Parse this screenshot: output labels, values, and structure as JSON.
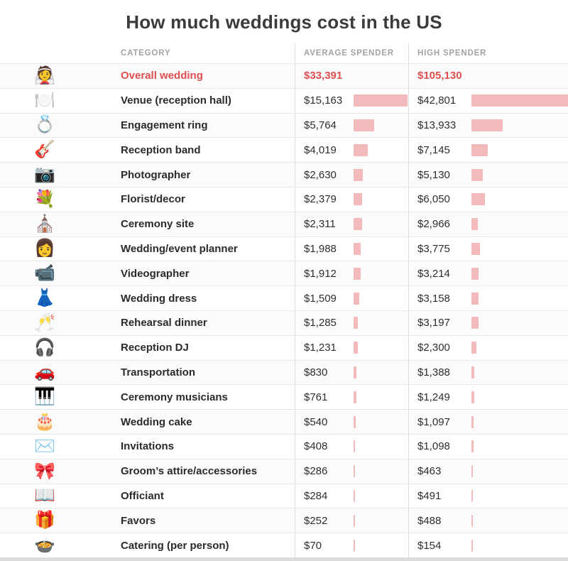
{
  "title": "How much weddings cost in the US",
  "columns": {
    "category": "CATEGORY",
    "average": "AVERAGE SPENDER",
    "high": "HIGH SPENDER"
  },
  "colors": {
    "highlight_red": "#e04f4f",
    "bar_pink": "#f2baba"
  },
  "chart_data": {
    "type": "bar",
    "title": "How much weddings cost in the US",
    "columns": [
      "CATEGORY",
      "AVERAGE SPENDER",
      "HIGH SPENDER"
    ],
    "legend_position": "none",
    "rows": [
      {
        "icon": "👰",
        "icon_name": "bride-groom-icon",
        "category": "Overall wedding",
        "average": 33391,
        "average_label": "$33,391",
        "high": 105130,
        "high_label": "$105,130",
        "highlight": true
      },
      {
        "icon": "🍽️",
        "icon_name": "reception-tables-icon",
        "category": "Venue (reception hall)",
        "average": 15163,
        "average_label": "$15,163",
        "high": 42801,
        "high_label": "$42,801",
        "highlight": false
      },
      {
        "icon": "💍",
        "icon_name": "engagement-ring-icon",
        "category": "Engagement ring",
        "average": 5764,
        "average_label": "$5,764",
        "high": 13933,
        "high_label": "$13,933",
        "highlight": false
      },
      {
        "icon": "🎸",
        "icon_name": "guitar-icon",
        "category": "Reception band",
        "average": 4019,
        "average_label": "$4,019",
        "high": 7145,
        "high_label": "$7,145",
        "highlight": false
      },
      {
        "icon": "📷",
        "icon_name": "camera-icon",
        "category": "Photographer",
        "average": 2630,
        "average_label": "$2,630",
        "high": 5130,
        "high_label": "$5,130",
        "highlight": false
      },
      {
        "icon": "💐",
        "icon_name": "flowers-icon",
        "category": "Florist/decor",
        "average": 2379,
        "average_label": "$2,379",
        "high": 6050,
        "high_label": "$6,050",
        "highlight": false
      },
      {
        "icon": "⛪",
        "icon_name": "wedding-arch-icon",
        "category": "Ceremony site",
        "average": 2311,
        "average_label": "$2,311",
        "high": 2966,
        "high_label": "$2,966",
        "highlight": false
      },
      {
        "icon": "👩",
        "icon_name": "planner-icon",
        "category": "Wedding/event planner",
        "average": 1988,
        "average_label": "$1,988",
        "high": 3775,
        "high_label": "$3,775",
        "highlight": false
      },
      {
        "icon": "📹",
        "icon_name": "video-camera-icon",
        "category": "Videographer",
        "average": 1912,
        "average_label": "$1,912",
        "high": 3214,
        "high_label": "$3,214",
        "highlight": false
      },
      {
        "icon": "👗",
        "icon_name": "wedding-dress-icon",
        "category": "Wedding dress",
        "average": 1509,
        "average_label": "$1,509",
        "high": 3158,
        "high_label": "$3,158",
        "highlight": false
      },
      {
        "icon": "🥂",
        "icon_name": "champagne-icon",
        "category": "Rehearsal dinner",
        "average": 1285,
        "average_label": "$1,285",
        "high": 3197,
        "high_label": "$3,197",
        "highlight": false
      },
      {
        "icon": "🎧",
        "icon_name": "dj-turntable-icon",
        "category": "Reception DJ",
        "average": 1231,
        "average_label": "$1,231",
        "high": 2300,
        "high_label": "$2,300",
        "highlight": false
      },
      {
        "icon": "🚗",
        "icon_name": "limousine-icon",
        "category": "Transportation",
        "average": 830,
        "average_label": "$830",
        "high": 1388,
        "high_label": "$1,388",
        "highlight": false
      },
      {
        "icon": "🎹",
        "icon_name": "keyboard-icon",
        "category": "Ceremony musicians",
        "average": 761,
        "average_label": "$761",
        "high": 1249,
        "high_label": "$1,249",
        "highlight": false
      },
      {
        "icon": "🎂",
        "icon_name": "wedding-cake-icon",
        "category": "Wedding cake",
        "average": 540,
        "average_label": "$540",
        "high": 1097,
        "high_label": "$1,097",
        "highlight": false
      },
      {
        "icon": "✉️",
        "icon_name": "invitations-icon",
        "category": "Invitations",
        "average": 408,
        "average_label": "$408",
        "high": 1098,
        "high_label": "$1,098",
        "highlight": false
      },
      {
        "icon": "🎀",
        "icon_name": "bow-tie-icon",
        "category": "Groom’s attire/accessories",
        "average": 286,
        "average_label": "$286",
        "high": 463,
        "high_label": "$463",
        "highlight": false
      },
      {
        "icon": "📖",
        "icon_name": "open-book-icon",
        "category": "Officiant",
        "average": 284,
        "average_label": "$284",
        "high": 491,
        "high_label": "$491",
        "highlight": false
      },
      {
        "icon": "🎁",
        "icon_name": "gift-icon",
        "category": "Favors",
        "average": 252,
        "average_label": "$252",
        "high": 488,
        "high_label": "$488",
        "highlight": false
      },
      {
        "icon": "🍲",
        "icon_name": "food-plate-icon",
        "category": "Catering (per person)",
        "average": 70,
        "average_label": "$70",
        "high": 154,
        "high_label": "$154",
        "highlight": false
      }
    ]
  }
}
